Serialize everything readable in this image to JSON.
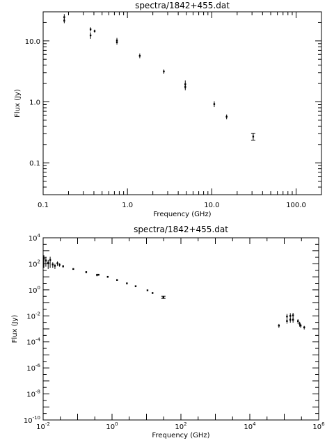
{
  "chart_data": [
    {
      "type": "scatter",
      "title": "spectra/1842+455.dat",
      "xlabel": "Frequency (GHz)",
      "ylabel": "Flux (Jy)",
      "xscale": "log",
      "yscale": "log",
      "xlim": [
        0.1,
        200
      ],
      "ylim": [
        0.03,
        30
      ],
      "x_tick_labels": [
        "0.1",
        "1.0",
        "10.0",
        "100.0"
      ],
      "y_tick_labels": [
        "0.1",
        "1.0",
        "10.0"
      ],
      "grid": false,
      "points": [
        {
          "x": 0.178,
          "y": 24.5,
          "err": 3.0
        },
        {
          "x": 0.178,
          "y": 21.5,
          "err": 2.0
        },
        {
          "x": 0.365,
          "y": 15.5,
          "err": 1.2
        },
        {
          "x": 0.365,
          "y": 12.3,
          "err": 1.5
        },
        {
          "x": 0.408,
          "y": 14.5,
          "err": 0.8
        },
        {
          "x": 0.75,
          "y": 10.2,
          "err": 1.0
        },
        {
          "x": 0.75,
          "y": 9.5,
          "err": 0.8
        },
        {
          "x": 1.4,
          "y": 5.7,
          "err": 0.5
        },
        {
          "x": 2.7,
          "y": 3.15,
          "err": 0.25
        },
        {
          "x": 4.85,
          "y": 1.95,
          "err": 0.3
        },
        {
          "x": 4.85,
          "y": 1.75,
          "err": 0.2
        },
        {
          "x": 10.7,
          "y": 0.92,
          "err": 0.1
        },
        {
          "x": 15.0,
          "y": 0.57,
          "err": 0.05
        },
        {
          "x": 31.0,
          "y": 0.27,
          "err": 0.035,
          "cap": true
        }
      ]
    },
    {
      "type": "scatter",
      "title": "spectra/1842+455.dat",
      "xlabel": "Frequency (GHz)",
      "ylabel": "Flux (Jy)",
      "xscale": "log",
      "yscale": "log",
      "xlim": [
        0.01,
        1000000
      ],
      "ylim": [
        1e-10,
        10000
      ],
      "x_tick_labels": [
        "10^-2",
        "10^0",
        "10^2",
        "10^4",
        "10^6"
      ],
      "y_tick_labels": [
        "10^-10",
        "10^-8",
        "10^-6",
        "10^-4",
        "10^-2",
        "10^0",
        "10^2",
        "10^4"
      ],
      "grid": false,
      "points": [
        {
          "x": 0.0105,
          "y": 250,
          "err": 200
        },
        {
          "x": 0.012,
          "y": 180,
          "err": 120
        },
        {
          "x": 0.014,
          "y": 120,
          "err": 80
        },
        {
          "x": 0.016,
          "y": 200,
          "err": 150
        },
        {
          "x": 0.019,
          "y": 90,
          "err": 40
        },
        {
          "x": 0.022,
          "y": 70,
          "err": 30
        },
        {
          "x": 0.026,
          "y": 110,
          "err": 40
        },
        {
          "x": 0.03,
          "y": 85,
          "err": 25
        },
        {
          "x": 0.038,
          "y": 65,
          "err": 15
        },
        {
          "x": 0.075,
          "y": 40,
          "err": 5
        },
        {
          "x": 0.178,
          "y": 23,
          "err": 4
        },
        {
          "x": 0.365,
          "y": 14,
          "err": 3
        },
        {
          "x": 0.408,
          "y": 14.5,
          "err": 2
        },
        {
          "x": 0.75,
          "y": 10,
          "err": 1.5
        },
        {
          "x": 1.4,
          "y": 5.7,
          "err": 0.8
        },
        {
          "x": 2.7,
          "y": 3.15,
          "err": 0.4
        },
        {
          "x": 4.85,
          "y": 1.9,
          "err": 0.3
        },
        {
          "x": 10.7,
          "y": 0.92,
          "err": 0.12
        },
        {
          "x": 15.0,
          "y": 0.57,
          "err": 0.08
        },
        {
          "x": 31.0,
          "y": 0.27,
          "err": 0.05,
          "cap": true
        },
        {
          "x": 70000,
          "y": 0.0018,
          "err": 0.0006
        },
        {
          "x": 120000,
          "y": 0.009,
          "err": 0.005
        },
        {
          "x": 120000,
          "y": 0.004,
          "err": 0.0015
        },
        {
          "x": 150000,
          "y": 0.01,
          "err": 0.006
        },
        {
          "x": 150000,
          "y": 0.005,
          "err": 0.002
        },
        {
          "x": 180000,
          "y": 0.011,
          "err": 0.006
        },
        {
          "x": 180000,
          "y": 0.005,
          "err": 0.002
        },
        {
          "x": 250000,
          "y": 0.004,
          "err": 0.0015
        },
        {
          "x": 280000,
          "y": 0.0025,
          "err": 0.001
        },
        {
          "x": 300000,
          "y": 0.0018,
          "err": 0.0006
        },
        {
          "x": 380000,
          "y": 0.0013,
          "err": 0.0004
        }
      ]
    }
  ]
}
